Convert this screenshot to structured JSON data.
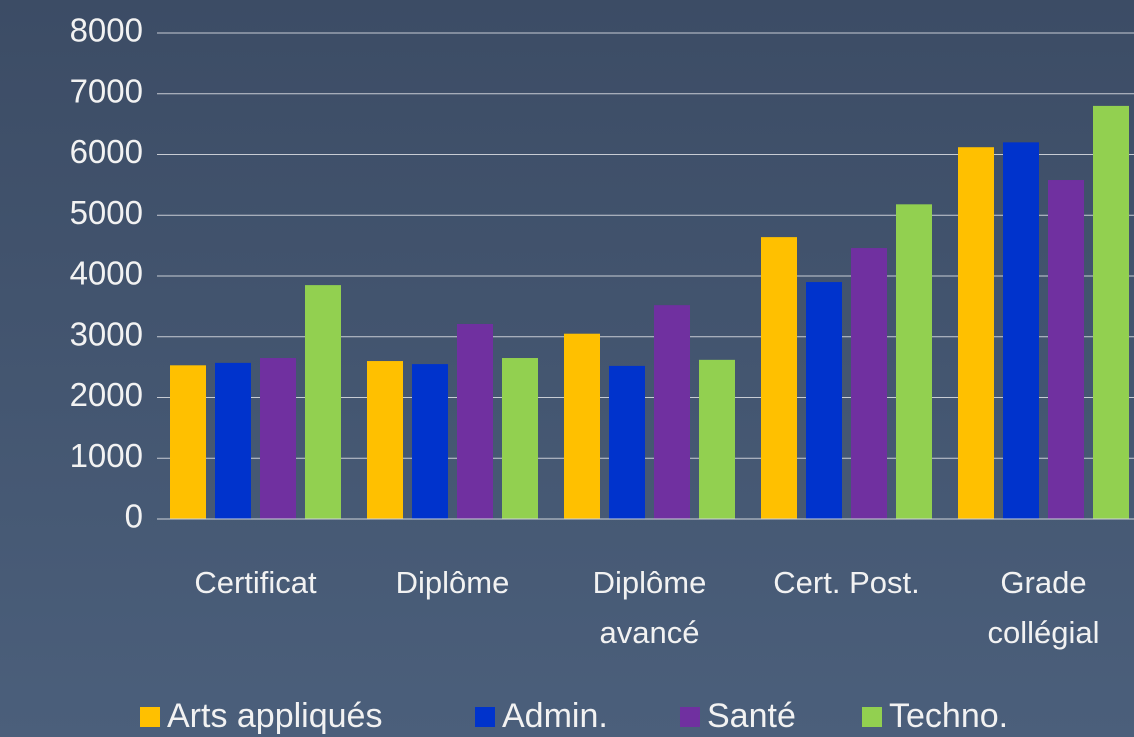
{
  "chart_data": {
    "type": "bar",
    "categories": [
      "Certificat",
      "Diplôme",
      "Diplôme avancé",
      "Cert. Post.",
      "Grade collégial"
    ],
    "series": [
      {
        "name": "Arts appliqués",
        "color": "#ffc000",
        "values": [
          2530,
          2600,
          3050,
          4640,
          6120
        ]
      },
      {
        "name": "Admin.",
        "color": "#0033cc",
        "values": [
          2570,
          2550,
          2520,
          3900,
          6200
        ]
      },
      {
        "name": "Santé",
        "color": "#7030a0",
        "values": [
          2650,
          3210,
          3520,
          4460,
          5580
        ]
      },
      {
        "name": "Techno.",
        "color": "#92d050",
        "values": [
          3850,
          2650,
          2620,
          5180,
          6800
        ]
      }
    ],
    "ylim": [
      0,
      8000
    ],
    "yticks": [
      0,
      1000,
      2000,
      3000,
      4000,
      5000,
      6000,
      7000,
      8000
    ],
    "grid": true,
    "legend": "bottom"
  }
}
